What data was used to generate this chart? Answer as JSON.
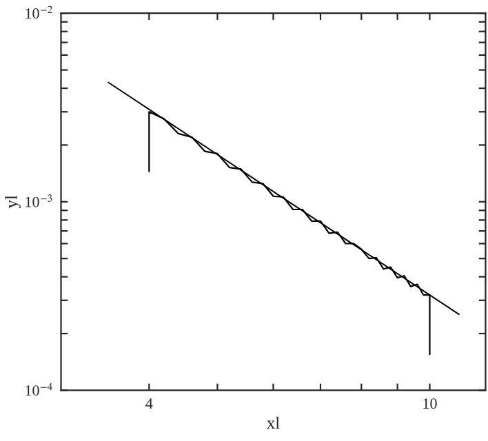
{
  "chart_data": {
    "type": "line",
    "xlabel": "xl",
    "ylabel": "yl",
    "log": "xy",
    "xlim": [
      3,
      12
    ],
    "ylim": [
      0.0001,
      0.01
    ],
    "xticks": [
      4,
      {
        "value": 5,
        "label": null
      },
      {
        "value": 6,
        "label": null
      },
      {
        "value": 7,
        "label": null
      },
      {
        "value": 8,
        "label": null
      },
      {
        "value": 9,
        "label": null
      },
      10
    ],
    "yticks": [
      {
        "value": 0.0001,
        "label": "10$^{−4}$"
      },
      {
        "value": 0.0002,
        "label": null
      },
      {
        "value": 0.0003,
        "label": null
      },
      {
        "value": 0.0004,
        "label": null
      },
      {
        "value": 0.0005,
        "label": null
      },
      {
        "value": 0.0006,
        "label": null
      },
      {
        "value": 0.0007,
        "label": null
      },
      {
        "value": 0.0008,
        "label": null
      },
      {
        "value": 0.0009,
        "label": null
      },
      {
        "value": 0.001,
        "label": "10$^{−3}$"
      },
      {
        "value": 0.002,
        "label": null
      },
      {
        "value": 0.003,
        "label": null
      },
      {
        "value": 0.004,
        "label": null
      },
      {
        "value": 0.005,
        "label": null
      },
      {
        "value": 0.006,
        "label": null
      },
      {
        "value": 0.007,
        "label": null
      },
      {
        "value": 0.008,
        "label": null
      },
      {
        "value": 0.009,
        "label": null
      },
      {
        "value": 0.01,
        "label": "10$^{−2}$"
      }
    ],
    "series": [
      {
        "color": "#000000",
        "x": [
          4.0,
          4.0,
          4.2,
          4.4,
          4.6,
          4.8,
          5.0,
          5.2,
          5.4,
          5.6,
          5.8,
          6.0,
          6.2,
          6.4,
          6.6,
          6.8,
          7.0,
          7.2,
          7.4,
          7.6,
          7.8,
          8.0,
          8.2,
          8.4,
          8.6,
          8.8,
          9.0,
          9.2,
          9.4,
          9.6,
          9.8,
          10.0,
          10.0
        ],
        "values": [
          0.00145,
          0.003,
          0.00275,
          0.0023,
          0.0022,
          0.00185,
          0.0018,
          0.00152,
          0.00149,
          0.00127,
          0.00125,
          0.00107,
          0.00106,
          0.00091,
          0.00091,
          0.00079,
          0.00079,
          0.00068,
          0.00069,
          0.0006,
          0.0006,
          0.00056,
          0.0005,
          0.000505,
          0.00044,
          0.00045,
          0.000395,
          0.000405,
          0.000355,
          0.000365,
          0.00032,
          0.00032,
          0.000155
        ]
      },
      {
        "color": "#000000",
        "x": [
          3.5,
          11.0
        ],
        "values": [
          0.0043,
          0.000253
        ]
      }
    ]
  }
}
